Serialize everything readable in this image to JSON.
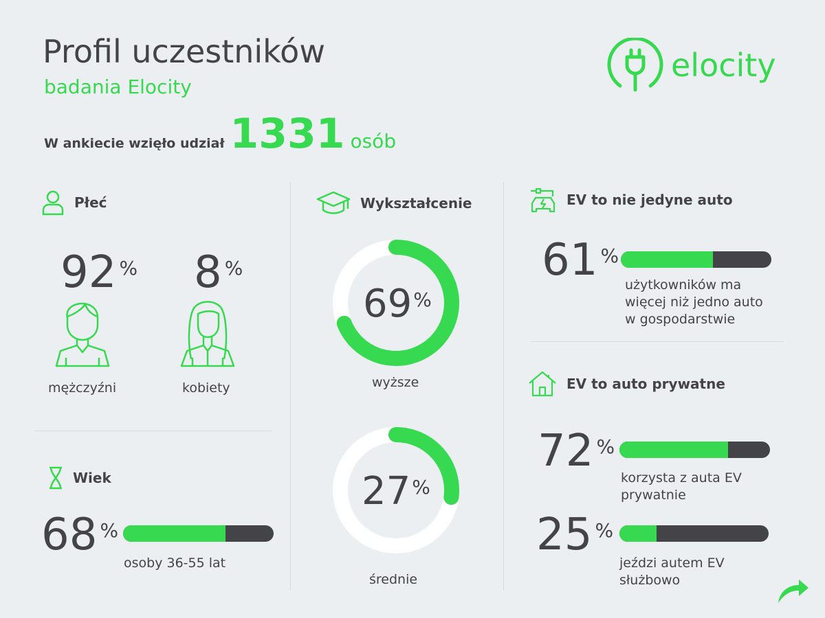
{
  "header": {
    "title": "Profil uczestników",
    "subtitle": "badania Elocity",
    "count_label": "W ankiecie wzięło udział",
    "count": "1331",
    "count_unit": "osób",
    "logo": "elocity"
  },
  "gender": {
    "title": "Płeć",
    "men": {
      "value": "92",
      "pct": "%",
      "label": "mężczyźni"
    },
    "women": {
      "value": "8",
      "pct": "%",
      "label": "kobiety"
    }
  },
  "age": {
    "title": "Wiek",
    "value": "68",
    "pct": "%",
    "label": "osoby 36-55 lat"
  },
  "education": {
    "title": "Wykształcenie",
    "higher": {
      "value": "69",
      "pct": "%",
      "label": "wyższe"
    },
    "secondary": {
      "value": "27",
      "pct": "%",
      "label": "średnie"
    }
  },
  "not_only": {
    "title": "EV to nie jedyne auto",
    "value": "61",
    "pct": "%",
    "label_lines": [
      "użytkowników ma",
      "więcej niż jedno auto",
      "w gospodarstwie"
    ]
  },
  "private": {
    "title": "EV to auto prywatne",
    "private_use": {
      "value": "72",
      "pct": "%",
      "label_lines": [
        "korzysta z auta EV",
        "prywatnie"
      ]
    },
    "business_use": {
      "value": "25",
      "pct": "%",
      "label_lines": [
        "jeździ autem EV",
        "służbowo"
      ]
    }
  },
  "colors": {
    "accent": "#36d94f",
    "dark": "#444448",
    "background": "#eceff2",
    "track": "#ffffff"
  },
  "chart_data": [
    {
      "type": "bar",
      "title": "Wiek",
      "categories": [
        "osoby 36-55 lat"
      ],
      "values": [
        68
      ],
      "ylim": [
        0,
        100
      ]
    },
    {
      "type": "pie",
      "title": "Wykształcenie",
      "categories": [
        "wyższe",
        "średnie"
      ],
      "values": [
        69,
        27
      ]
    },
    {
      "type": "bar",
      "title": "EV to nie jedyne auto",
      "categories": [
        "więcej niż jedno auto"
      ],
      "values": [
        61
      ],
      "ylim": [
        0,
        100
      ]
    },
    {
      "type": "bar",
      "title": "EV to auto prywatne",
      "categories": [
        "prywatnie",
        "służbowo"
      ],
      "values": [
        72,
        25
      ],
      "ylim": [
        0,
        100
      ]
    }
  ]
}
